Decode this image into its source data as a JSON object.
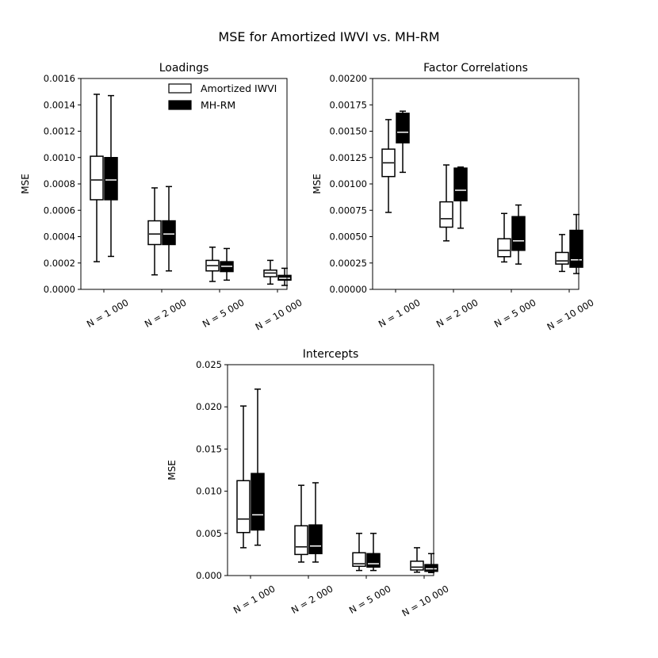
{
  "title": "MSE for Amortized IWVI vs. MH-RM",
  "colors": {
    "amortized_iwvi": "#ffffff",
    "mh_rm": "#000000",
    "median_on_black": "#ffffff",
    "outline": "#000000"
  },
  "chart_data": [
    {
      "type": "box",
      "title": "Loadings",
      "ylabel": "MSE",
      "categories": [
        "N = 1 000",
        "N = 2 000",
        "N = 5 000",
        "N = 10 000"
      ],
      "ylim": [
        0,
        0.0016
      ],
      "yticks": [
        0,
        0.0002,
        0.0004,
        0.0006,
        0.0008,
        0.001,
        0.0012,
        0.0014,
        0.0016
      ],
      "ytick_labels": [
        "0.0000",
        "0.0002",
        "0.0004",
        "0.0006",
        "0.0008",
        "0.0010",
        "0.0012",
        "0.0014",
        "0.0016"
      ],
      "legend": {
        "placement": "upper-right",
        "entries": [
          "Amortized IWVI",
          "MH-RM"
        ]
      },
      "series": [
        {
          "name": "Amortized IWVI",
          "boxes": [
            {
              "whislo": 0.00021,
              "q1": 0.00068,
              "med": 0.00083,
              "q3": 0.00101,
              "whishi": 0.00148
            },
            {
              "whislo": 0.00011,
              "q1": 0.00034,
              "med": 0.00042,
              "q3": 0.00052,
              "whishi": 0.00077
            },
            {
              "whislo": 6e-05,
              "q1": 0.00014,
              "med": 0.00018,
              "q3": 0.00022,
              "whishi": 0.00032
            },
            {
              "whislo": 4e-05,
              "q1": 9.6e-05,
              "med": 0.000124,
              "q3": 0.000146,
              "whishi": 0.00022
            }
          ]
        },
        {
          "name": "MH-RM",
          "boxes": [
            {
              "whislo": 0.00025,
              "q1": 0.00068,
              "med": 0.00083,
              "q3": 0.001,
              "whishi": 0.00147
            },
            {
              "whislo": 0.00014,
              "q1": 0.00034,
              "med": 0.00042,
              "q3": 0.00052,
              "whishi": 0.00078
            },
            {
              "whislo": 7e-05,
              "q1": 0.000135,
              "med": 0.000175,
              "q3": 0.00021,
              "whishi": 0.00031
            },
            {
              "whislo": 3e-05,
              "q1": 7e-05,
              "med": 8.4e-05,
              "q3": 0.000106,
              "whishi": 0.00016
            }
          ]
        }
      ]
    },
    {
      "type": "box",
      "title": "Factor Correlations",
      "ylabel": "MSE",
      "categories": [
        "N = 1 000",
        "N = 2 000",
        "N = 5 000",
        "N = 10 000"
      ],
      "ylim": [
        0,
        0.002
      ],
      "yticks": [
        0,
        0.00025,
        0.0005,
        0.00075,
        0.001,
        0.00125,
        0.0015,
        0.00175,
        0.002
      ],
      "ytick_labels": [
        "0.00000",
        "0.00025",
        "0.00050",
        "0.00075",
        "0.00100",
        "0.00125",
        "0.00150",
        "0.00175",
        "0.00200"
      ],
      "series": [
        {
          "name": "Amortized IWVI",
          "boxes": [
            {
              "whislo": 0.00073,
              "q1": 0.00107,
              "med": 0.0012,
              "q3": 0.00133,
              "whishi": 0.00161
            },
            {
              "whislo": 0.00046,
              "q1": 0.00059,
              "med": 0.00067,
              "q3": 0.00083,
              "whishi": 0.00118
            },
            {
              "whislo": 0.00026,
              "q1": 0.00031,
              "med": 0.00037,
              "q3": 0.00048,
              "whishi": 0.00072
            },
            {
              "whislo": 0.00017,
              "q1": 0.00024,
              "med": 0.00027,
              "q3": 0.00035,
              "whishi": 0.00052
            }
          ]
        },
        {
          "name": "MH-RM",
          "boxes": [
            {
              "whislo": 0.00111,
              "q1": 0.00139,
              "med": 0.00149,
              "q3": 0.00167,
              "whishi": 0.00169
            },
            {
              "whislo": 0.00058,
              "q1": 0.00084,
              "med": 0.00094,
              "q3": 0.00115,
              "whishi": 0.00116
            },
            {
              "whislo": 0.00024,
              "q1": 0.00037,
              "med": 0.00046,
              "q3": 0.00069,
              "whishi": 0.0008
            },
            {
              "whislo": 0.00015,
              "q1": 0.00021,
              "med": 0.00028,
              "q3": 0.00056,
              "whishi": 0.00071
            }
          ]
        }
      ]
    },
    {
      "type": "box",
      "title": "Intercepts",
      "ylabel": "MSE",
      "categories": [
        "N = 1 000",
        "N = 2 000",
        "N = 5 000",
        "N = 10 000"
      ],
      "ylim": [
        0,
        0.025
      ],
      "yticks": [
        0,
        0.005,
        0.01,
        0.015,
        0.02,
        0.025
      ],
      "ytick_labels": [
        "0.000",
        "0.005",
        "0.010",
        "0.015",
        "0.020",
        "0.025"
      ],
      "series": [
        {
          "name": "Amortized IWVI",
          "boxes": [
            {
              "whislo": 0.0033,
              "q1": 0.0051,
              "med": 0.0067,
              "q3": 0.01125,
              "whishi": 0.0201
            },
            {
              "whislo": 0.0016,
              "q1": 0.0025,
              "med": 0.0034,
              "q3": 0.0059,
              "whishi": 0.0107
            },
            {
              "whislo": 0.0006,
              "q1": 0.0011,
              "med": 0.0014,
              "q3": 0.0027,
              "whishi": 0.005
            },
            {
              "whislo": 0.0004,
              "q1": 0.00066,
              "med": 0.001,
              "q3": 0.0017,
              "whishi": 0.0033
            }
          ]
        },
        {
          "name": "MH-RM",
          "boxes": [
            {
              "whislo": 0.0036,
              "q1": 0.0054,
              "med": 0.0072,
              "q3": 0.0121,
              "whishi": 0.0221
            },
            {
              "whislo": 0.0016,
              "q1": 0.0026,
              "med": 0.0035,
              "q3": 0.006,
              "whishi": 0.011
            },
            {
              "whislo": 0.0006,
              "q1": 0.001,
              "med": 0.0014,
              "q3": 0.0026,
              "whishi": 0.005
            },
            {
              "whislo": 0.00035,
              "q1": 0.0005,
              "med": 0.0008,
              "q3": 0.0013,
              "whishi": 0.0026
            }
          ]
        }
      ]
    }
  ]
}
